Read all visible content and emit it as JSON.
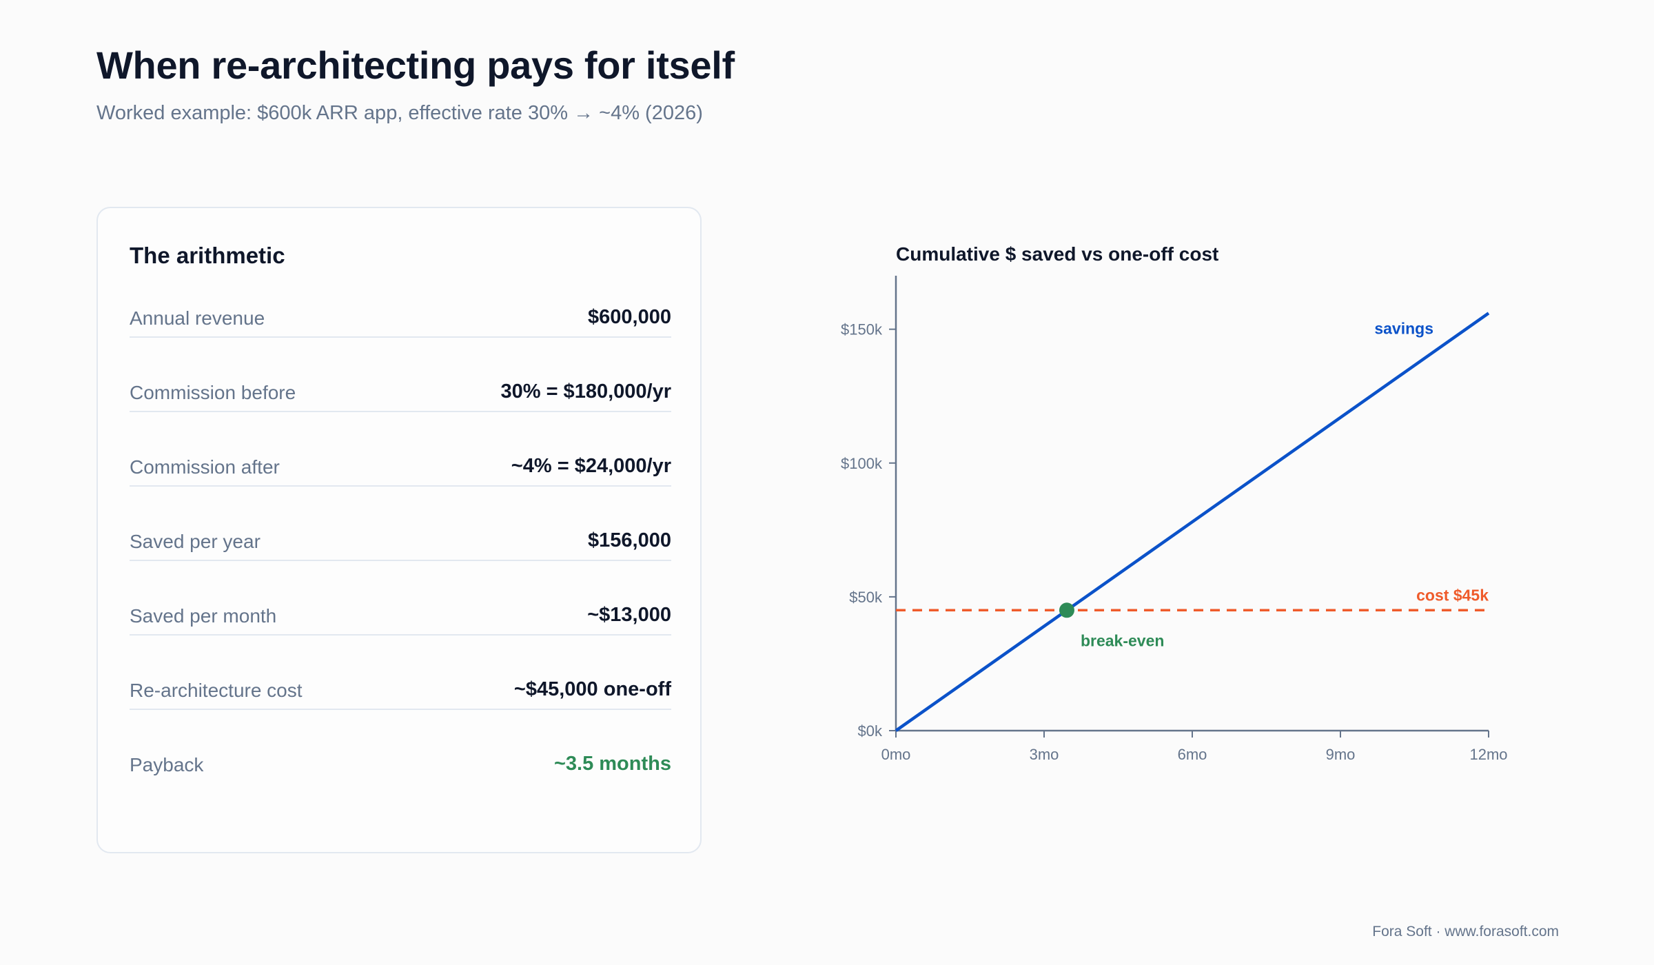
{
  "header": {
    "title": "When re-architecting pays for itself",
    "subtitle": "Worked example: $600k ARR app, effective rate 30% → ~4% (2026)"
  },
  "card": {
    "title": "The arithmetic",
    "rows": [
      {
        "label": "Annual revenue",
        "value": "$600,000"
      },
      {
        "label": "Commission before",
        "value": "30% = $180,000/yr"
      },
      {
        "label": "Commission after",
        "value": "~4% = $24,000/yr"
      },
      {
        "label": "Saved per year",
        "value": "$156,000"
      },
      {
        "label": "Saved per month",
        "value": "~$13,000"
      },
      {
        "label": "Re-architecture cost",
        "value": "~$45,000 one-off"
      },
      {
        "label": "Payback",
        "value": "~3.5 months"
      }
    ]
  },
  "chart_data": {
    "type": "line",
    "title": "Cumulative $ saved vs one-off cost",
    "x_ticks": [
      "0mo",
      "3mo",
      "6mo",
      "9mo",
      "12mo"
    ],
    "y_ticks": [
      "$0k",
      "$50k",
      "$100k",
      "$150k"
    ],
    "xlim": [
      0,
      12
    ],
    "ylim": [
      0,
      170000
    ],
    "series": [
      {
        "name": "savings",
        "color": "#0b52c9",
        "style": "solid",
        "x": [
          0,
          12
        ],
        "y": [
          0,
          156000
        ]
      },
      {
        "name": "cost $45k",
        "color": "#ef5b2b",
        "style": "dashed",
        "x": [
          0,
          12
        ],
        "y": [
          45000,
          45000
        ]
      }
    ],
    "annotations": [
      {
        "label": "break-even",
        "x": 3.46,
        "y": 45000,
        "color": "#2e8b57"
      }
    ],
    "grid": false
  },
  "footer": {
    "credit": "Fora Soft · www.forasoft.com"
  }
}
